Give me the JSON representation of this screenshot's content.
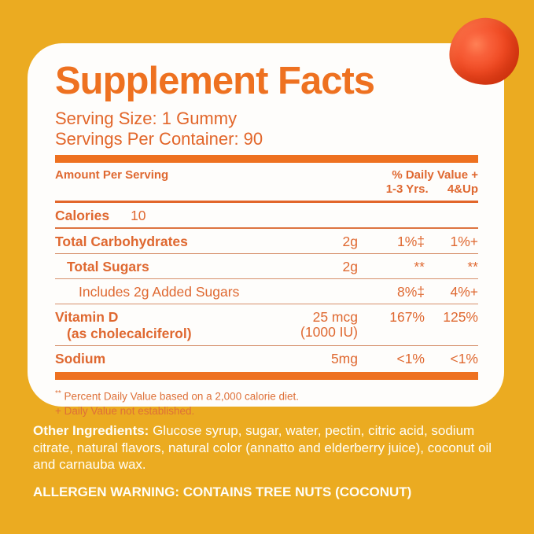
{
  "colors": {
    "background_gold": "#EBAB21",
    "card_white": "#FEFDFB",
    "accent_orange_bar": "#EE7120",
    "text_orange": "#DF6830",
    "divider_light": "#D6906B",
    "divider_medium": "#DD7440",
    "gummy_orange": "#F04A22",
    "footer_text_white": "#FFFEF8"
  },
  "card": {
    "title": "Supplement Facts",
    "serving_size": "Serving Size: 1 Gummy",
    "servings_per_container": "Servings Per Container: 90",
    "table": {
      "header_left": "Amount Per Serving",
      "header_right_line1": "% Daily Value +",
      "header_col1": "1-3 Yrs.",
      "header_col2": "4&Up",
      "rows": [
        {
          "name": "Calories",
          "inline_amount": "10",
          "bold": true,
          "indent": 0,
          "divider": "medium"
        },
        {
          "name": "Total Carbohydrates",
          "amount": "2g",
          "v1": "1%‡",
          "v2": "1%+",
          "bold": true,
          "indent": 0,
          "divider": "light"
        },
        {
          "name": "Total Sugars",
          "amount": "2g",
          "v1": "**",
          "v2": "**",
          "bold": true,
          "indent": 1,
          "divider": "light"
        },
        {
          "name": "Includes 2g Added Sugars",
          "v1": "8%‡",
          "v2": "4%+",
          "bold": false,
          "indent": 2,
          "divider": "light"
        },
        {
          "name": "Vitamin D",
          "sub": "(as cholecalciferol)",
          "amount": "25 mcg",
          "amount2": "(1000 IU)",
          "v1": "167%",
          "v2": "125%",
          "bold": true,
          "indent": 0,
          "divider": "light"
        },
        {
          "name": "Sodium",
          "amount": "5mg",
          "v1": "<1%",
          "v2": "<1%",
          "bold": true,
          "indent": 0,
          "divider": "none"
        }
      ],
      "footnotes": [
        {
          "marker": "**",
          "superscript": true,
          "text": "Percent Daily Value based on a 2,000 calorie diet."
        },
        {
          "marker": "+",
          "superscript": false,
          "text": "Daily Value not established."
        }
      ]
    }
  },
  "footer": {
    "other_ingredients_label": "Other Ingredients:",
    "other_ingredients_text": " Glucose syrup, sugar, water, pectin, citric acid, sodium citrate, natural flavors, natural color (annatto and elderberry juice), coconut oil and carnauba wax.",
    "allergen_warning": "ALLERGEN WARNING: CONTAINS TREE NUTS (COCONUT)"
  },
  "decor": {
    "gummy": "orange-gummy"
  }
}
